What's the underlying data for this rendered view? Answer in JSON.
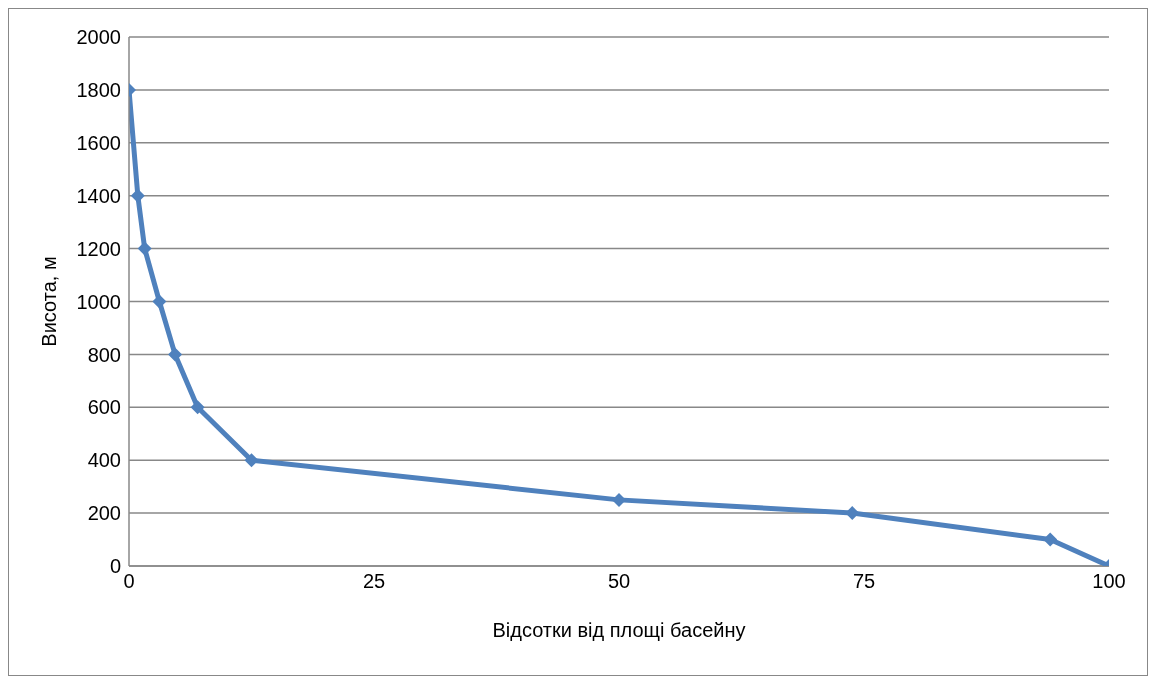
{
  "chart_data": {
    "type": "line",
    "xlabel": "Відсотки від площі басейну",
    "ylabel": "Висота, м",
    "x": [
      0,
      0.9,
      1.6,
      3.1,
      4.7,
      7,
      12.5,
      50,
      73.8,
      94,
      100
    ],
    "series": [
      {
        "color": "#4f81bd",
        "values": [
          1800,
          1400,
          1200,
          1000,
          800,
          600,
          400,
          250,
          200,
          100,
          0
        ]
      }
    ],
    "xlim": [
      0,
      100
    ],
    "xticks": [
      0,
      25,
      50,
      75,
      100
    ],
    "ylim": [
      0,
      2000
    ],
    "yticks": [
      0,
      200,
      400,
      600,
      800,
      1000,
      1200,
      1400,
      1600,
      1800,
      2000
    ],
    "grid": "y",
    "legend": false,
    "marker": "diamond",
    "line_style": "solid"
  }
}
